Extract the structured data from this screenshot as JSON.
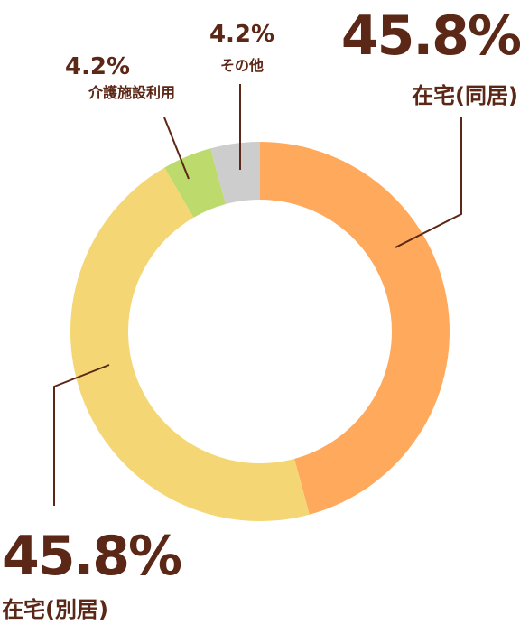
{
  "chart_data": {
    "type": "pie",
    "variant": "donut",
    "slices": [
      {
        "label": "在宅(同居)",
        "value": 45.8,
        "value_label": "45.8%",
        "color": "#ffa95d"
      },
      {
        "label": "在宅(別居)",
        "value": 45.8,
        "value_label": "45.8%",
        "color": "#f4d774"
      },
      {
        "label": "介護施設利用",
        "value": 4.2,
        "value_label": "4.2%",
        "color": "#bcdb6c"
      },
      {
        "label": "その他",
        "value": 4.2,
        "value_label": "4.2%",
        "color": "#cdcdcd"
      }
    ],
    "start": "12 o'clock",
    "direction": "clockwise",
    "label_color": "#5b2716",
    "legend": "none"
  }
}
